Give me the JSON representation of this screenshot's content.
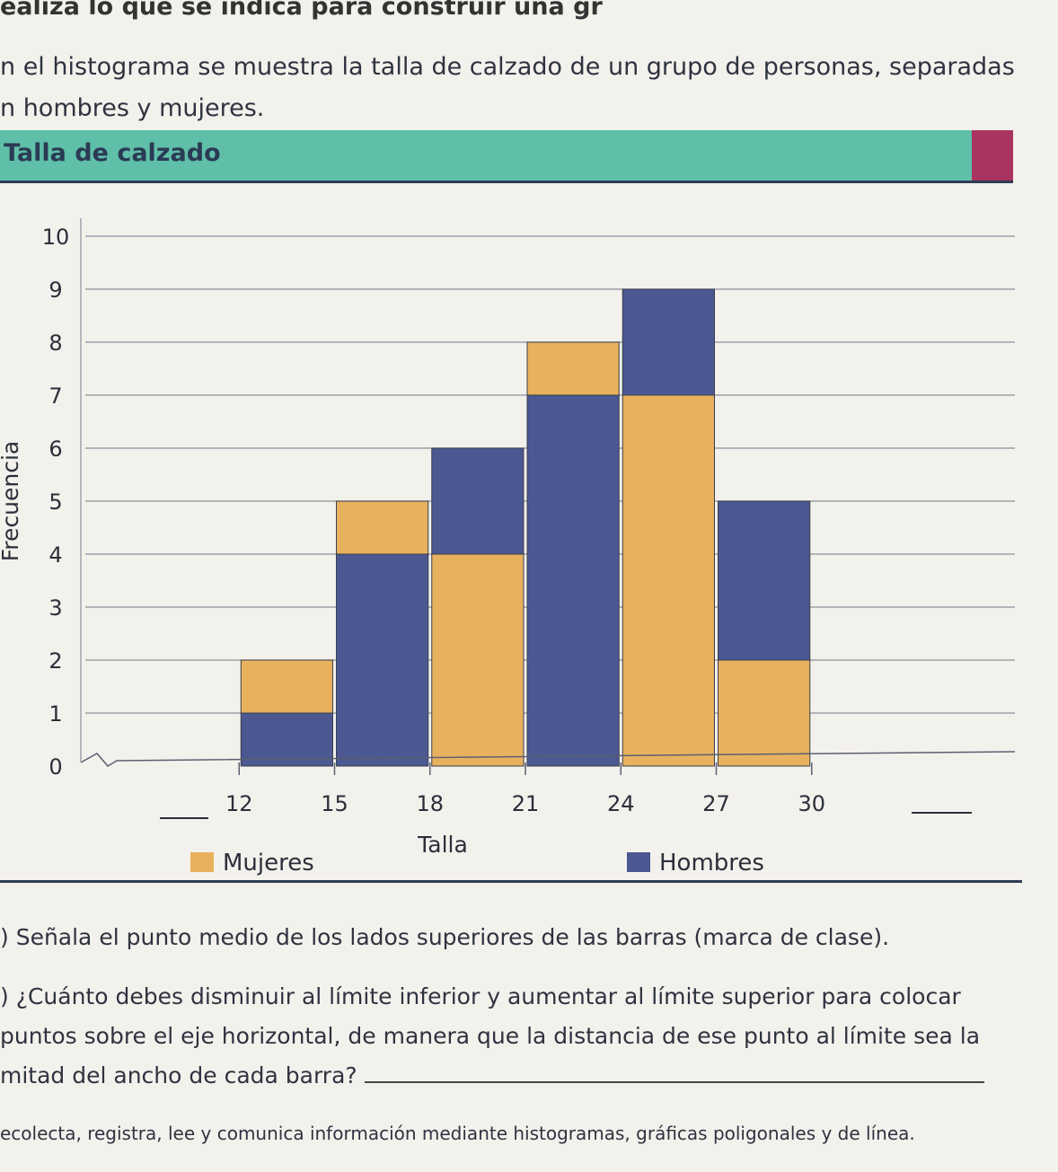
{
  "page": {
    "top_line": "ealiza lo que se indica para construir una gr",
    "intro": "n el histograma se muestra la talla de calzado de un grupo de personas, separadas\nn hombres y mujeres.",
    "banner_title": "Talla de calzado",
    "question_a": ") Señala el punto medio de los lados superiores de las barras (marca de clase).",
    "question_b": ") ¿Cuánto debes disminuir al límite inferior y aumentar al límite superior para colocar puntos sobre el eje horizontal, de manera que la distancia de ese punto al límite sea la mitad del ancho de cada barra?",
    "footer": "ecolecta, registra, lee y comunica información mediante histogramas, gráficas poligonales y de línea."
  },
  "colors": {
    "banner": "#5fbfa9",
    "banner_accent": "#a8345f",
    "mujeres": "#e8b15e",
    "hombres": "#4b5891"
  },
  "chart_data": {
    "type": "bar",
    "stacked": true,
    "title": "Talla de calzado",
    "xlabel": "Talla",
    "ylabel": "Frecuencia",
    "x_ticks": [
      "12",
      "15",
      "18",
      "21",
      "24",
      "27",
      "30"
    ],
    "bins": [
      [
        12,
        15
      ],
      [
        15,
        18
      ],
      [
        18,
        21
      ],
      [
        21,
        24
      ],
      [
        24,
        27
      ],
      [
        27,
        30
      ]
    ],
    "ylim": [
      0,
      10
    ],
    "y_ticks": [
      0,
      1,
      2,
      3,
      4,
      5,
      6,
      7,
      8,
      9,
      10
    ],
    "grid": true,
    "legend_position": "bottom",
    "series": [
      {
        "name": "Mujeres",
        "color": "#e8b15e",
        "values": [
          1,
          1,
          4,
          1,
          7,
          2
        ]
      },
      {
        "name": "Hombres",
        "color": "#4b5891",
        "values": [
          1,
          4,
          2,
          7,
          2,
          3
        ]
      }
    ],
    "stack_order_by_bin": [
      [
        "Hombres",
        "Mujeres"
      ],
      [
        "Hombres",
        "Mujeres"
      ],
      [
        "Mujeres",
        "Hombres"
      ],
      [
        "Hombres",
        "Mujeres"
      ],
      [
        "Mujeres",
        "Hombres"
      ],
      [
        "Mujeres",
        "Hombres"
      ]
    ]
  }
}
